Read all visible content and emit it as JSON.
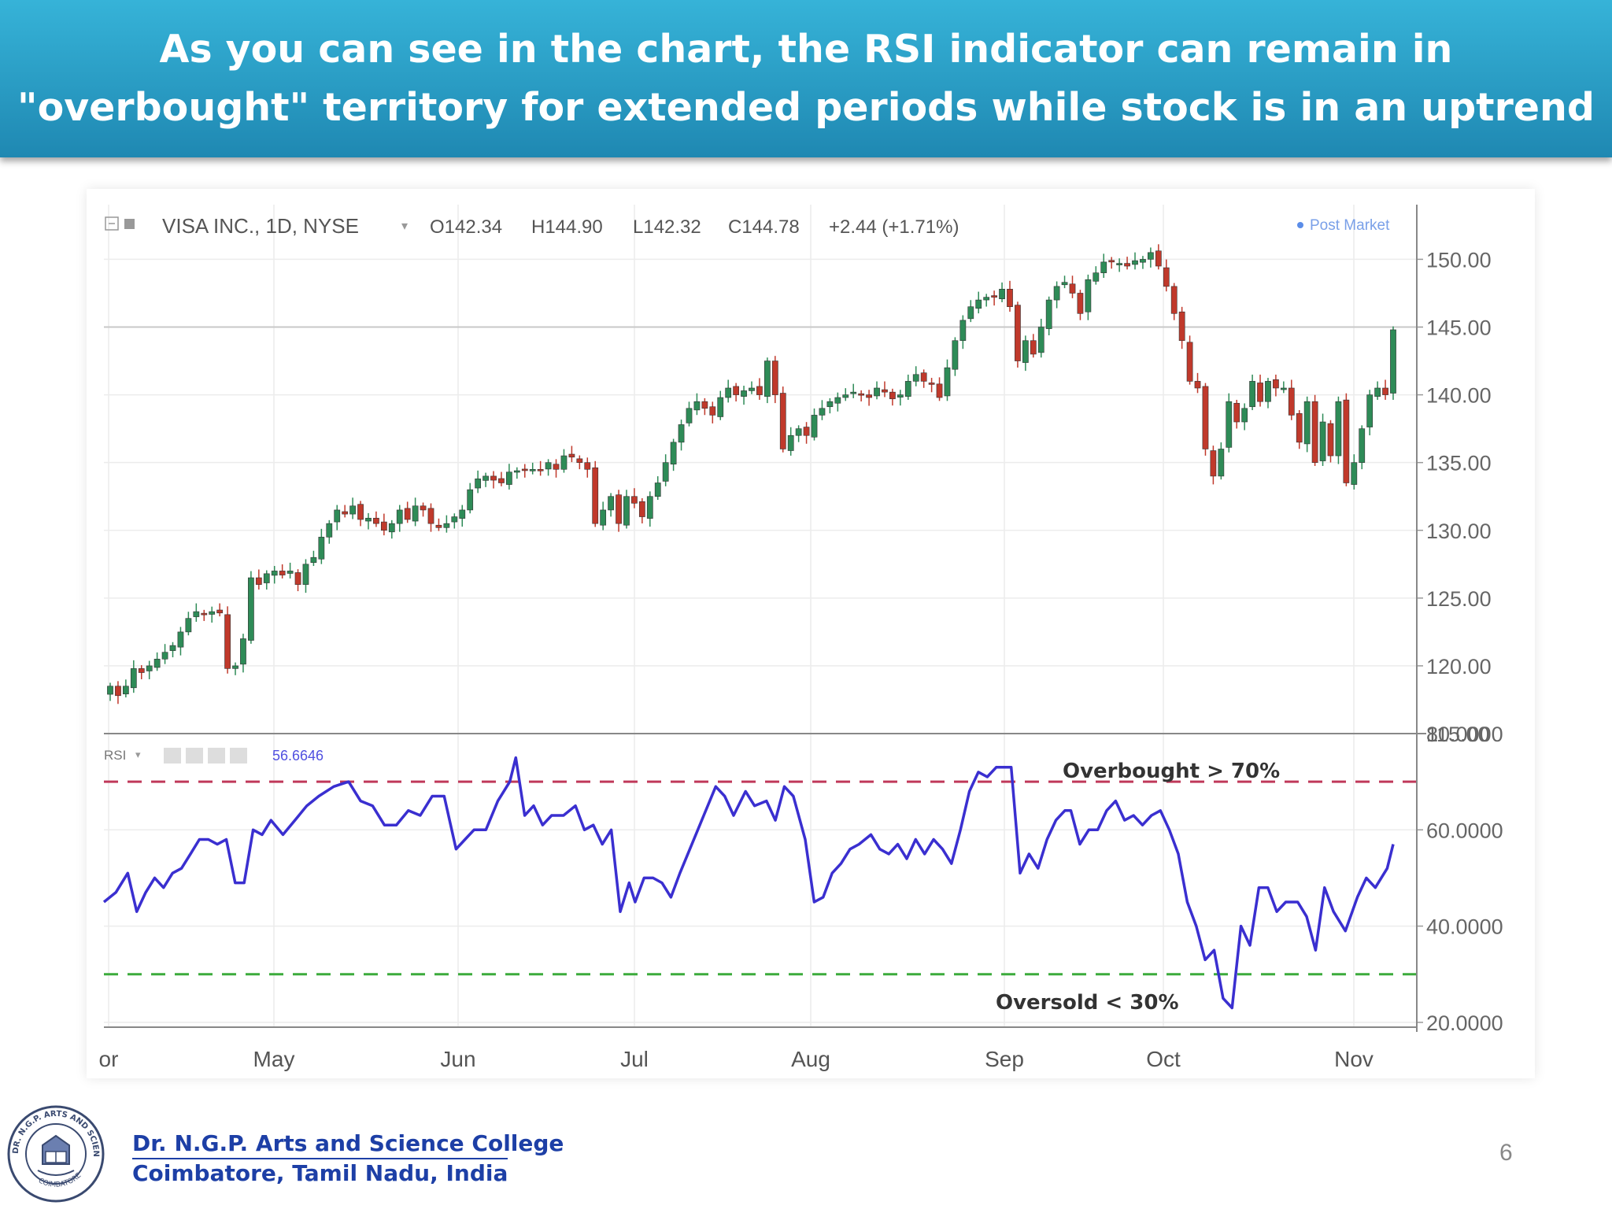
{
  "slide": {
    "title_line1": "As you can see in the chart, the RSI indicator can remain in",
    "title_line2": "\"overbought\" territory for extended periods while stock is in an uptrend",
    "college_name": "Dr. N.G.P. Arts and Science College",
    "college_place": "Coimbatore, Tamil Nadu, India",
    "page_number": "6",
    "logo_text": "DR. N.G.P. ARTS AND SCIENCE COLLEGE",
    "logo_bottom_text": "COIMBATORE"
  },
  "colors": {
    "banner": "#2a9fc9",
    "up_candle": "#2e8b57",
    "down_candle": "#c0392b",
    "rsi_line": "#3a2fd0",
    "overbought_line": "#c0395a",
    "oversold_line": "#3cab3c",
    "college_text": "#1d3fa6"
  },
  "chart_data": [
    {
      "type": "candlestick",
      "header": {
        "symbol": "VISA INC., 1D, NYSE",
        "open": "O142.34",
        "high": "H144.90",
        "low": "L142.32",
        "close": "C144.78",
        "change": "+2.44 (+1.71%)",
        "post_market": "Post Market"
      },
      "x_ticks": [
        "or",
        "May",
        "Jun",
        "Jul",
        "Aug",
        "Sep",
        "Oct",
        "Nov"
      ],
      "y_ticks": [
        "150.00",
        "145.00",
        "140.00",
        "135.00",
        "130.00",
        "125.00",
        "120.00",
        "115.00"
      ],
      "ylim": [
        115,
        152
      ],
      "grid": true,
      "last_price_level": 145.0,
      "closes": [
        118.5,
        117.8,
        118.5,
        119.8,
        119.5,
        120.0,
        120.5,
        121.0,
        121.5,
        122.5,
        123.5,
        124.0,
        123.8,
        124.0,
        123.9,
        119.8,
        120.0,
        122.0,
        126.5,
        126.0,
        126.8,
        127.0,
        126.7,
        127.0,
        126.0,
        127.5,
        128.0,
        129.5,
        130.5,
        131.5,
        131.2,
        131.8,
        130.8,
        130.9,
        130.5,
        130.0,
        130.5,
        131.5,
        130.8,
        131.8,
        131.5,
        130.5,
        130.2,
        130.5,
        131.0,
        131.5,
        133.0,
        133.8,
        134.0,
        133.7,
        133.5,
        134.3,
        134.4,
        134.5,
        134.5,
        134.4,
        135.0,
        134.5,
        135.5,
        135.4,
        135.0,
        134.5,
        130.5,
        131.5,
        132.5,
        130.5,
        132.5,
        132.0,
        131.0,
        132.5,
        133.5,
        135.0,
        136.5,
        137.8,
        139.0,
        139.5,
        139.0,
        138.5,
        139.8,
        140.5,
        140.0,
        140.3,
        140.5,
        140.0,
        142.5,
        140.0,
        136.0,
        137.0,
        137.5,
        137.0,
        138.5,
        139.0,
        139.5,
        139.8,
        140.0,
        140.2,
        140.0,
        139.8,
        140.5,
        140.2,
        139.7,
        140.0,
        141.0,
        141.5,
        141.0,
        140.8,
        139.8,
        142.0,
        144.0,
        145.5,
        146.5,
        147.0,
        147.2,
        147.2,
        147.8,
        146.5,
        142.5,
        144.0,
        143.0,
        145.0,
        147.0,
        148.0,
        148.3,
        147.5,
        146.0,
        148.5,
        149.0,
        149.8,
        149.8,
        149.7,
        149.5,
        149.9,
        150.0,
        150.5,
        149.5,
        148.0,
        146.0,
        144.0,
        141.0,
        140.5,
        136.0,
        134.0,
        136.0,
        139.5,
        138.0,
        139.0,
        141.0,
        139.5,
        141.0,
        140.5,
        140.5,
        138.5,
        136.5,
        139.5,
        135.0,
        138.0,
        135.5,
        139.5,
        133.5,
        135.0,
        137.5,
        140.0,
        140.5,
        140.0,
        144.8
      ]
    },
    {
      "type": "line",
      "series": [
        {
          "name": "RSI",
          "last_value": "56.6646"
        }
      ],
      "label": "RSI",
      "y_ticks": [
        "80.0000",
        "60.0000",
        "40.0000",
        "20.0000"
      ],
      "ylim": [
        19,
        80
      ],
      "overbought_level": 70,
      "oversold_level": 30,
      "overbought_label": "Overbought > 70%",
      "oversold_label": "Oversold < 30%",
      "rsi_points": [
        [
          0,
          45
        ],
        [
          4,
          47
        ],
        [
          8,
          51
        ],
        [
          11,
          43
        ],
        [
          14,
          47
        ],
        [
          17,
          50
        ],
        [
          20,
          48
        ],
        [
          23,
          51
        ],
        [
          26,
          52
        ],
        [
          29,
          55
        ],
        [
          32,
          58
        ],
        [
          35,
          58
        ],
        [
          38,
          57
        ],
        [
          41,
          58
        ],
        [
          44,
          49
        ],
        [
          47,
          49
        ],
        [
          50,
          60
        ],
        [
          53,
          59
        ],
        [
          56,
          62
        ],
        [
          60,
          59
        ],
        [
          64,
          62
        ],
        [
          68,
          65
        ],
        [
          72,
          67
        ],
        [
          77,
          69
        ],
        [
          82,
          70
        ],
        [
          86,
          66
        ],
        [
          90,
          65
        ],
        [
          94,
          61
        ],
        [
          98,
          61
        ],
        [
          102,
          64
        ],
        [
          106,
          63
        ],
        [
          110,
          67
        ],
        [
          114,
          67
        ],
        [
          118,
          56
        ],
        [
          121,
          58
        ],
        [
          124,
          60
        ],
        [
          128,
          60
        ],
        [
          132,
          66
        ],
        [
          136,
          70
        ],
        [
          138,
          75
        ],
        [
          141,
          63
        ],
        [
          144,
          65
        ],
        [
          147,
          61
        ],
        [
          150,
          63
        ],
        [
          154,
          63
        ],
        [
          158,
          65
        ],
        [
          161,
          60
        ],
        [
          164,
          61
        ],
        [
          167,
          57
        ],
        [
          170,
          60
        ],
        [
          173,
          43
        ],
        [
          176,
          49
        ],
        [
          178,
          45
        ],
        [
          181,
          50
        ],
        [
          184,
          50
        ],
        [
          187,
          49
        ],
        [
          190,
          46
        ],
        [
          193,
          51
        ],
        [
          197,
          57
        ],
        [
          201,
          63
        ],
        [
          205,
          69
        ],
        [
          208,
          67
        ],
        [
          211,
          63
        ],
        [
          215,
          68
        ],
        [
          218,
          65
        ],
        [
          222,
          66
        ],
        [
          225,
          62
        ],
        [
          228,
          69
        ],
        [
          231,
          67
        ],
        [
          235,
          58
        ],
        [
          238,
          45
        ],
        [
          241,
          46
        ],
        [
          244,
          51
        ],
        [
          247,
          53
        ],
        [
          250,
          56
        ],
        [
          253,
          57
        ],
        [
          257,
          59
        ],
        [
          260,
          56
        ],
        [
          263,
          55
        ],
        [
          266,
          57
        ],
        [
          269,
          54
        ],
        [
          272,
          58
        ],
        [
          275,
          55
        ],
        [
          278,
          58
        ],
        [
          281,
          56
        ],
        [
          284,
          53
        ],
        [
          287,
          60
        ],
        [
          290,
          68
        ],
        [
          293,
          72
        ],
        [
          296,
          71
        ],
        [
          299,
          73
        ],
        [
          302,
          73
        ],
        [
          304,
          73
        ],
        [
          307,
          51
        ],
        [
          310,
          55
        ],
        [
          313,
          52
        ],
        [
          316,
          58
        ],
        [
          319,
          62
        ],
        [
          322,
          64
        ],
        [
          324,
          64
        ],
        [
          327,
          57
        ],
        [
          330,
          60
        ],
        [
          333,
          60
        ],
        [
          336,
          64
        ],
        [
          339,
          66
        ],
        [
          342,
          62
        ],
        [
          345,
          63
        ],
        [
          348,
          61
        ],
        [
          351,
          63
        ],
        [
          354,
          64
        ],
        [
          357,
          60
        ],
        [
          360,
          55
        ],
        [
          363,
          45
        ],
        [
          366,
          40
        ],
        [
          369,
          33
        ],
        [
          372,
          35
        ],
        [
          375,
          25
        ],
        [
          378,
          23
        ],
        [
          381,
          40
        ],
        [
          384,
          36
        ],
        [
          387,
          48
        ],
        [
          390,
          48
        ],
        [
          393,
          43
        ],
        [
          396,
          45
        ],
        [
          400,
          45
        ],
        [
          403,
          42
        ],
        [
          406,
          35
        ],
        [
          409,
          48
        ],
        [
          412,
          43
        ],
        [
          416,
          39
        ],
        [
          420,
          46
        ],
        [
          423,
          50
        ],
        [
          426,
          48
        ],
        [
          430,
          52
        ],
        [
          432,
          57
        ]
      ]
    }
  ]
}
